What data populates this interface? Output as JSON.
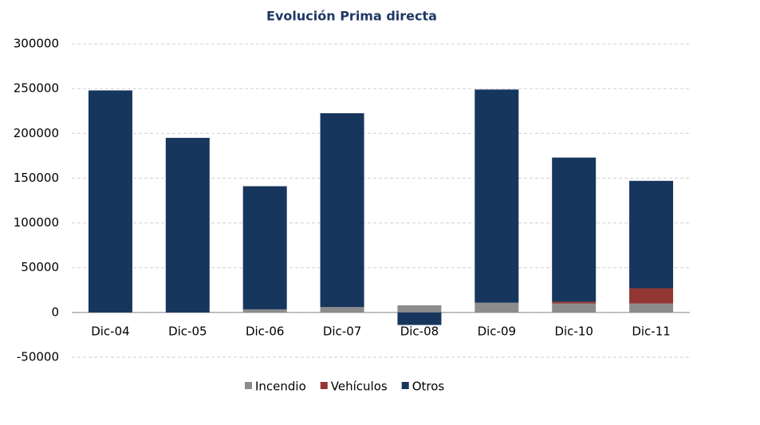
{
  "chart_data": {
    "type": "stacked_bar",
    "title": "Evolución Prima directa",
    "categories": [
      "Dic-04",
      "Dic-05",
      "Dic-06",
      "Dic-07",
      "Dic-08",
      "Dic-09",
      "Dic-10",
      "Dic-11"
    ],
    "series": [
      {
        "name": "Incendio",
        "color": "#8c8c8c",
        "values": [
          0,
          0,
          3500,
          6000,
          8000,
          11000,
          10000,
          10000
        ]
      },
      {
        "name": "Vehículos",
        "color": "#943634",
        "values": [
          0,
          0,
          0,
          0,
          0,
          0,
          2000,
          17000
        ]
      },
      {
        "name": "Otros",
        "color": "#17365d",
        "values": [
          248000,
          195000,
          137500,
          216500,
          -14000,
          238000,
          161000,
          120000
        ]
      }
    ],
    "ylim": [
      -50000,
      300000
    ],
    "yticks": [
      -50000,
      0,
      50000,
      100000,
      150000,
      200000,
      250000,
      300000
    ],
    "grid": true,
    "legend": "bottom"
  }
}
